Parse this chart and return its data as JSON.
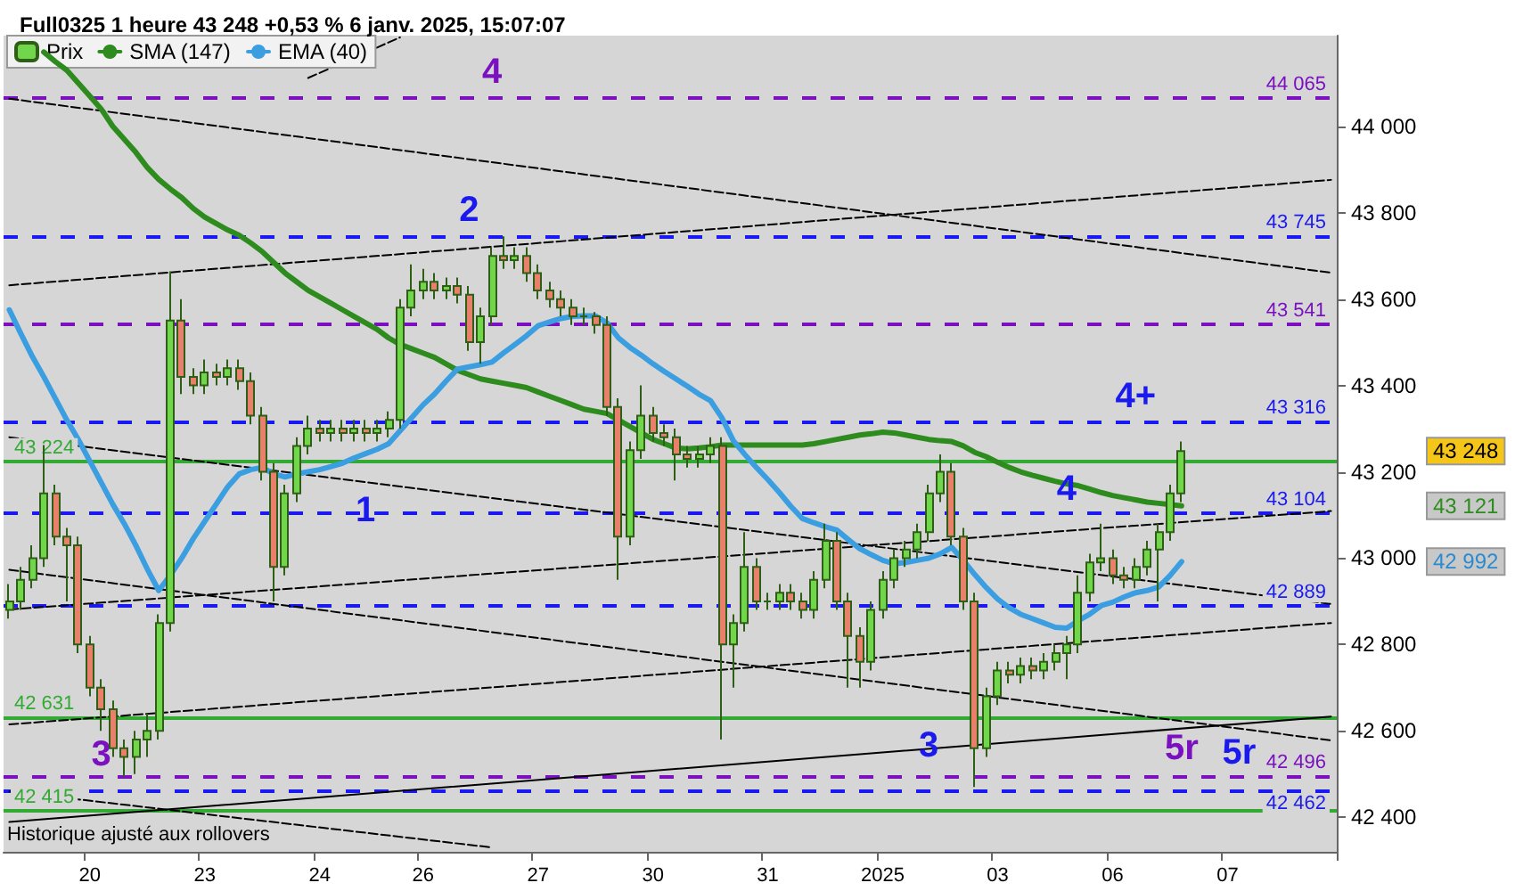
{
  "chart_data": {
    "type": "candlestick",
    "title": "Full0325 1 heure 43 248 +0,53 % 6 janv. 2025, 15:07:07",
    "categories": [
      null,
      null,
      null,
      null,
      null,
      null,
      null,
      "20",
      null,
      null,
      null,
      null,
      null,
      null,
      null,
      null,
      null,
      "23",
      null,
      null,
      null,
      null,
      null,
      null,
      null,
      null,
      null,
      "24",
      null,
      null,
      null,
      null,
      null,
      null,
      null,
      null,
      "26",
      null,
      null,
      null,
      null,
      null,
      null,
      null,
      null,
      null,
      "27",
      null,
      null,
      null,
      null,
      null,
      null,
      null,
      null,
      null,
      "30",
      null,
      null,
      null,
      null,
      null,
      null,
      null,
      null,
      null,
      "31",
      null,
      null,
      null,
      null,
      null,
      null,
      null,
      null,
      null,
      "2025",
      null,
      null,
      null,
      null,
      null,
      null,
      null,
      null,
      null,
      "03",
      null,
      null,
      null,
      null,
      null,
      null,
      null,
      null,
      null,
      "06",
      null,
      null,
      null,
      null,
      null,
      null,
      null,
      null,
      null,
      "07",
      null,
      null,
      null,
      null,
      null,
      null,
      null,
      null,
      null
    ],
    "ylim": [
      42320,
      44210
    ],
    "yticks": [
      {
        "value": 42400,
        "label": "42 400"
      },
      {
        "value": 42600,
        "label": "42 600"
      },
      {
        "value": 42800,
        "label": "42 800"
      },
      {
        "value": 43000,
        "label": "43 000"
      },
      {
        "value": 43200,
        "label": "43 200"
      },
      {
        "value": 43400,
        "label": "43 400"
      },
      {
        "value": 43600,
        "label": "43 600"
      },
      {
        "value": 43800,
        "label": "43 800"
      },
      {
        "value": 44000,
        "label": "44 000"
      }
    ],
    "grid": false,
    "legend": "top left",
    "marker": "none",
    "series": [
      {
        "type": "line",
        "color": "#000000",
        "line_style": "dashed",
        "values": [
          44064,
          null,
          null,
          null,
          null,
          null,
          null,
          null,
          null,
          null,
          null,
          null,
          null,
          null,
          null,
          null,
          null,
          null,
          null,
          null,
          null,
          null,
          null,
          null,
          null,
          null,
          null,
          null,
          null,
          null,
          null,
          null,
          null,
          null,
          null,
          null,
          null,
          null,
          null,
          null,
          null,
          null,
          null,
          null,
          null,
          null,
          null,
          null,
          null,
          null,
          null,
          null,
          null,
          null,
          null,
          null,
          null,
          null,
          null,
          null,
          null,
          null,
          null,
          null,
          null,
          null,
          null,
          null,
          null,
          null,
          null,
          null,
          null,
          null,
          null,
          null,
          null,
          null,
          null,
          null,
          null,
          null,
          null,
          null,
          null,
          null,
          null,
          null,
          null,
          null,
          null,
          null,
          null,
          null,
          null,
          null,
          null,
          null,
          null,
          null,
          null,
          null,
          null,
          null,
          null,
          null,
          null,
          null,
          null,
          null,
          null,
          null,
          null,
          null,
          null,
          43661
        ]
      },
      {
        "type": "line",
        "color": "#000000",
        "line_style": "dashed",
        "values": [
          43632,
          null,
          null,
          null,
          null,
          null,
          null,
          null,
          null,
          null,
          null,
          null,
          null,
          null,
          null,
          null,
          null,
          null,
          null,
          null,
          null,
          null,
          null,
          null,
          null,
          null,
          null,
          null,
          null,
          null,
          null,
          null,
          null,
          null,
          null,
          null,
          null,
          null,
          null,
          null,
          null,
          null,
          null,
          null,
          null,
          null,
          null,
          null,
          null,
          null,
          null,
          null,
          null,
          null,
          null,
          null,
          null,
          null,
          null,
          null,
          null,
          null,
          null,
          null,
          null,
          null,
          null,
          null,
          null,
          null,
          null,
          null,
          null,
          null,
          null,
          null,
          null,
          null,
          null,
          null,
          null,
          null,
          null,
          null,
          null,
          null,
          null,
          null,
          null,
          null,
          null,
          null,
          null,
          null,
          null,
          null,
          null,
          null,
          null,
          null,
          null,
          null,
          null,
          null,
          null,
          null,
          null,
          null,
          null,
          null,
          null,
          null,
          null,
          null,
          null,
          43876
        ]
      },
      {
        "type": "line",
        "color": "#000000",
        "line_style": "dashed",
        "values": [
          43280,
          null,
          null,
          null,
          null,
          null,
          null,
          null,
          null,
          null,
          null,
          null,
          null,
          null,
          null,
          null,
          null,
          null,
          null,
          null,
          null,
          null,
          null,
          null,
          null,
          null,
          null,
          null,
          null,
          null,
          null,
          null,
          null,
          null,
          null,
          null,
          null,
          null,
          null,
          null,
          null,
          null,
          null,
          null,
          null,
          null,
          null,
          null,
          null,
          null,
          null,
          null,
          null,
          null,
          null,
          null,
          null,
          null,
          null,
          null,
          null,
          null,
          null,
          null,
          null,
          null,
          null,
          null,
          null,
          null,
          null,
          null,
          null,
          null,
          null,
          null,
          null,
          null,
          null,
          null,
          null,
          null,
          null,
          null,
          null,
          null,
          null,
          null,
          null,
          null,
          null,
          null,
          null,
          null,
          null,
          null,
          null,
          null,
          null,
          null,
          null,
          null,
          null,
          null,
          null,
          null,
          null,
          null,
          null,
          null,
          null,
          null,
          null,
          null,
          null,
          42894
        ]
      },
      {
        "type": "line",
        "color": "#000000",
        "line_style": "dashed",
        "values": [
          42881,
          null,
          null,
          null,
          null,
          null,
          null,
          null,
          null,
          null,
          null,
          null,
          null,
          null,
          null,
          null,
          null,
          null,
          null,
          null,
          null,
          null,
          null,
          null,
          null,
          null,
          null,
          null,
          null,
          null,
          null,
          null,
          null,
          null,
          null,
          null,
          null,
          null,
          null,
          null,
          null,
          null,
          null,
          null,
          null,
          null,
          null,
          null,
          null,
          null,
          null,
          null,
          null,
          null,
          null,
          null,
          null,
          null,
          null,
          null,
          null,
          null,
          null,
          null,
          null,
          null,
          null,
          null,
          null,
          null,
          null,
          null,
          null,
          null,
          null,
          null,
          null,
          null,
          null,
          null,
          null,
          null,
          null,
          null,
          null,
          null,
          null,
          null,
          null,
          null,
          null,
          null,
          null,
          null,
          null,
          null,
          null,
          null,
          null,
          null,
          null,
          null,
          null,
          null,
          null,
          null,
          null,
          null,
          null,
          null,
          null,
          null,
          null,
          null,
          null,
          43109
        ]
      },
      {
        "type": "line",
        "color": "#000000",
        "line_style": "dashed",
        "values": [
          42973,
          null,
          null,
          null,
          null,
          null,
          null,
          null,
          null,
          null,
          null,
          null,
          null,
          null,
          null,
          null,
          null,
          null,
          null,
          null,
          null,
          null,
          null,
          null,
          null,
          null,
          null,
          null,
          null,
          null,
          null,
          null,
          null,
          null,
          null,
          null,
          null,
          null,
          null,
          null,
          null,
          null,
          null,
          null,
          null,
          null,
          null,
          null,
          null,
          null,
          null,
          null,
          null,
          null,
          null,
          null,
          null,
          null,
          null,
          null,
          null,
          null,
          null,
          null,
          null,
          null,
          null,
          null,
          null,
          null,
          null,
          null,
          null,
          null,
          null,
          null,
          null,
          null,
          null,
          null,
          null,
          null,
          null,
          null,
          null,
          null,
          null,
          null,
          null,
          null,
          null,
          null,
          null,
          null,
          null,
          null,
          null,
          null,
          null,
          null,
          null,
          null,
          null,
          null,
          null,
          null,
          null,
          null,
          null,
          null,
          null,
          null,
          null,
          null,
          null,
          42578
        ]
      },
      {
        "type": "line",
        "color": "#000000",
        "line_style": "dashed",
        "values": [
          42615,
          null,
          null,
          null,
          null,
          null,
          null,
          null,
          null,
          null,
          null,
          null,
          null,
          null,
          null,
          null,
          null,
          null,
          null,
          null,
          null,
          null,
          null,
          null,
          null,
          null,
          null,
          null,
          null,
          null,
          null,
          null,
          null,
          null,
          null,
          null,
          null,
          null,
          null,
          null,
          null,
          null,
          null,
          null,
          null,
          null,
          null,
          null,
          null,
          null,
          null,
          null,
          null,
          null,
          null,
          null,
          null,
          null,
          null,
          null,
          null,
          null,
          null,
          null,
          null,
          null,
          null,
          null,
          null,
          null,
          null,
          null,
          null,
          null,
          null,
          null,
          null,
          null,
          null,
          null,
          null,
          null,
          null,
          null,
          null,
          null,
          null,
          null,
          null,
          null,
          null,
          null,
          null,
          null,
          null,
          null,
          null,
          null,
          null,
          null,
          null,
          null,
          null,
          null,
          null,
          null,
          null,
          null,
          null,
          null,
          null,
          null,
          null,
          null,
          null,
          42850
        ]
      },
      {
        "type": "line",
        "color": "#000000",
        "line_style": "dashed",
        "values": [
          42460,
          null,
          null,
          null,
          null,
          null,
          null,
          null,
          null,
          null,
          null,
          null,
          null,
          null,
          null,
          null,
          null,
          null,
          null,
          null,
          null,
          null,
          null,
          null,
          null,
          null,
          null,
          null,
          null,
          null,
          null,
          null,
          null,
          null,
          null,
          null,
          null,
          null,
          null,
          null,
          null,
          null,
          42330,
          null,
          null,
          null,
          null,
          null,
          null,
          null,
          null,
          null,
          null,
          null,
          null,
          null,
          null,
          null,
          null,
          null,
          null,
          null,
          null,
          null,
          null,
          null,
          null,
          null,
          null,
          null,
          null,
          null,
          null,
          null,
          null,
          null,
          null,
          null,
          null,
          null,
          null,
          null,
          null,
          null,
          null,
          null,
          null,
          null,
          null,
          null,
          null,
          null,
          null,
          null,
          null,
          null,
          null,
          null,
          null,
          null,
          null,
          null,
          null,
          null,
          null,
          null,
          null,
          null,
          null,
          null,
          null,
          null,
          null,
          null,
          null,
          null
        ]
      },
      {
        "type": "line",
        "color": "#000000",
        "line_style": "dashed",
        "values": [
          null,
          null,
          null,
          null,
          null,
          null,
          null,
          null,
          null,
          null,
          null,
          null,
          null,
          null,
          null,
          null,
          null,
          null,
          null,
          null,
          null,
          null,
          null,
          null,
          null,
          null,
          44112,
          null,
          null,
          null,
          null,
          null,
          null,
          null,
          44206,
          null,
          null,
          null,
          null,
          null,
          null,
          null,
          null,
          null,
          null,
          null,
          null,
          null,
          null,
          null,
          null,
          null,
          null,
          null,
          null,
          null,
          null,
          null,
          null,
          null,
          null,
          null,
          null,
          null,
          null,
          null,
          null,
          null,
          null,
          null,
          null,
          null,
          null,
          null,
          null,
          null,
          null,
          null,
          null,
          null,
          null,
          null,
          null,
          null,
          null,
          null,
          null,
          null,
          null,
          null,
          null,
          null,
          null,
          null,
          null,
          null,
          null,
          null,
          null,
          null,
          null,
          null,
          null,
          null,
          null,
          null,
          null,
          null,
          null,
          null,
          null,
          null,
          null,
          null,
          null,
          null
        ]
      },
      {
        "type": "line",
        "color": "#000000",
        "line_style": "solid",
        "values": [
          42389,
          null,
          null,
          null,
          null,
          null,
          null,
          null,
          null,
          null,
          null,
          null,
          null,
          null,
          null,
          null,
          null,
          null,
          null,
          null,
          null,
          null,
          null,
          null,
          null,
          null,
          null,
          null,
          null,
          null,
          null,
          null,
          null,
          null,
          null,
          null,
          null,
          null,
          null,
          null,
          null,
          null,
          null,
          null,
          null,
          null,
          null,
          null,
          null,
          null,
          null,
          null,
          null,
          null,
          null,
          null,
          null,
          null,
          null,
          null,
          null,
          null,
          null,
          null,
          null,
          null,
          null,
          null,
          null,
          null,
          null,
          null,
          null,
          null,
          null,
          null,
          null,
          null,
          null,
          null,
          null,
          null,
          null,
          null,
          null,
          null,
          null,
          null,
          null,
          null,
          null,
          null,
          null,
          null,
          null,
          null,
          null,
          null,
          null,
          null,
          null,
          null,
          null,
          null,
          null,
          null,
          null,
          null,
          null,
          null,
          null,
          null,
          null,
          null,
          null,
          42633
        ]
      },
      {
        "name": "Prix",
        "ohlc": [
          [
            42880,
            42940,
            42860,
            42900
          ],
          [
            42900,
            42980,
            42880,
            42950
          ],
          [
            42950,
            43030,
            42930,
            43000
          ],
          [
            43000,
            43262,
            42980,
            43150
          ],
          [
            43150,
            43170,
            43030,
            43050
          ],
          [
            43050,
            43070,
            42900,
            43030
          ],
          [
            43030,
            43050,
            42780,
            42800
          ],
          [
            42800,
            42820,
            42680,
            42700
          ],
          [
            42700,
            42720,
            42600,
            42650
          ],
          [
            42650,
            42670,
            42540,
            42560
          ],
          [
            42560,
            42580,
            42494,
            42540
          ],
          [
            42540,
            42600,
            42500,
            42580
          ],
          [
            42580,
            42640,
            42540,
            42600
          ],
          [
            42600,
            42870,
            42580,
            42850
          ],
          [
            42850,
            43664,
            42830,
            43550
          ],
          [
            43550,
            43600,
            43380,
            43420
          ],
          [
            43420,
            43440,
            43380,
            43400
          ],
          [
            43400,
            43460,
            43380,
            43430
          ],
          [
            43430,
            43450,
            43400,
            43420
          ],
          [
            43420,
            43460,
            43400,
            43440
          ],
          [
            43440,
            43460,
            43390,
            43410
          ],
          [
            43410,
            43430,
            43310,
            43330
          ],
          [
            43330,
            43350,
            43180,
            43200
          ],
          [
            43200,
            43220,
            42900,
            42980
          ],
          [
            42980,
            43170,
            42960,
            43150
          ],
          [
            43150,
            43280,
            43130,
            43260
          ],
          [
            43260,
            43330,
            43240,
            43300
          ],
          [
            43300,
            43320,
            43270,
            43290
          ],
          [
            43290,
            43320,
            43270,
            43300
          ],
          [
            43300,
            43320,
            43270,
            43290
          ],
          [
            43290,
            43320,
            43270,
            43300
          ],
          [
            43300,
            43320,
            43270,
            43290
          ],
          [
            43290,
            43320,
            43270,
            43300
          ],
          [
            43300,
            43340,
            43280,
            43320
          ],
          [
            43320,
            43600,
            43300,
            43580
          ],
          [
            43580,
            43680,
            43560,
            43620
          ],
          [
            43620,
            43670,
            43600,
            43640
          ],
          [
            43640,
            43660,
            43600,
            43620
          ],
          [
            43620,
            43650,
            43600,
            43630
          ],
          [
            43630,
            43650,
            43590,
            43610
          ],
          [
            43610,
            43630,
            43480,
            43500
          ],
          [
            43500,
            43580,
            43450,
            43560
          ],
          [
            43560,
            43720,
            43540,
            43700
          ],
          [
            43700,
            43745,
            43670,
            43690
          ],
          [
            43690,
            43720,
            43670,
            43700
          ],
          [
            43700,
            43720,
            43640,
            43660
          ],
          [
            43660,
            43680,
            43600,
            43620
          ],
          [
            43620,
            43640,
            43580,
            43600
          ],
          [
            43600,
            43620,
            43560,
            43580
          ],
          [
            43580,
            43600,
            43540,
            43560
          ],
          [
            43560,
            43580,
            43540,
            43560
          ],
          [
            43560,
            43570,
            43520,
            43540
          ],
          [
            43540,
            43560,
            43330,
            43350
          ],
          [
            43350,
            43370,
            42950,
            43050
          ],
          [
            43050,
            43270,
            43030,
            43250
          ],
          [
            43250,
            43400,
            43230,
            43330
          ],
          [
            43330,
            43350,
            43270,
            43290
          ],
          [
            43290,
            43310,
            43260,
            43280
          ],
          [
            43280,
            43300,
            43180,
            43240
          ],
          [
            43240,
            43260,
            43210,
            43230
          ],
          [
            43230,
            43260,
            43210,
            43240
          ],
          [
            43240,
            43280,
            43220,
            43260
          ],
          [
            43260,
            43280,
            42580,
            42800
          ],
          [
            42800,
            42870,
            42700,
            42850
          ],
          [
            42850,
            43060,
            42830,
            42980
          ],
          [
            42980,
            43000,
            42880,
            42900
          ],
          [
            42900,
            42920,
            42880,
            42900
          ],
          [
            42900,
            42940,
            42880,
            42920
          ],
          [
            42920,
            42940,
            42880,
            42900
          ],
          [
            42900,
            42920,
            42860,
            42880
          ],
          [
            42880,
            42970,
            42860,
            42950
          ],
          [
            42950,
            43080,
            42930,
            43040
          ],
          [
            43040,
            43060,
            42880,
            42900
          ],
          [
            42900,
            42920,
            42700,
            42820
          ],
          [
            42820,
            42840,
            42700,
            42760
          ],
          [
            42760,
            42900,
            42740,
            42880
          ],
          [
            42880,
            42970,
            42860,
            42950
          ],
          [
            42950,
            43020,
            42930,
            43000
          ],
          [
            43000,
            43040,
            42980,
            43020
          ],
          [
            43020,
            43080,
            43000,
            43060
          ],
          [
            43060,
            43170,
            43040,
            43150
          ],
          [
            43150,
            43240,
            43130,
            43200
          ],
          [
            43200,
            43220,
            43030,
            43050
          ],
          [
            43050,
            43070,
            42880,
            42900
          ],
          [
            42900,
            42920,
            42470,
            42560
          ],
          [
            42560,
            42700,
            42540,
            42680
          ],
          [
            42680,
            42760,
            42660,
            42740
          ],
          [
            42740,
            42760,
            42710,
            42730
          ],
          [
            42730,
            42770,
            42710,
            42750
          ],
          [
            42750,
            42770,
            42720,
            42740
          ],
          [
            42740,
            42780,
            42720,
            42760
          ],
          [
            42760,
            42800,
            42740,
            42780
          ],
          [
            42780,
            42820,
            42720,
            42800
          ],
          [
            42800,
            42960,
            42780,
            42920
          ],
          [
            42920,
            43010,
            42900,
            42990
          ],
          [
            42990,
            43080,
            42970,
            43000
          ],
          [
            43000,
            43020,
            42940,
            42960
          ],
          [
            42960,
            42980,
            42930,
            42950
          ],
          [
            42950,
            43000,
            42930,
            42980
          ],
          [
            42980,
            43040,
            42960,
            43020
          ],
          [
            43020,
            43080,
            42900,
            43060
          ],
          [
            43060,
            43170,
            43040,
            43150
          ],
          [
            43150,
            43270,
            43130,
            43248
          ],
          null,
          null,
          null,
          null,
          null,
          null,
          null,
          null,
          null,
          null,
          null,
          null,
          null
        ]
      },
      {
        "name": "SMA (147)",
        "type": "line",
        "color": "#2e8b1e",
        "line_style": "solid",
        "values": [
          null,
          null,
          null,
          44172,
          44150,
          44130,
          44100,
          44070,
          44040,
          44000,
          43970,
          43940,
          43905,
          43877,
          43855,
          43835,
          43810,
          43790,
          43775,
          43760,
          43748,
          43730,
          43710,
          43685,
          43660,
          43640,
          43620,
          43605,
          43590,
          43575,
          43560,
          43545,
          43530,
          43510,
          43495,
          43485,
          43475,
          43465,
          43450,
          43435,
          43425,
          43415,
          43410,
          43405,
          43400,
          43395,
          43385,
          43375,
          43365,
          43355,
          43345,
          43340,
          43335,
          43320,
          43305,
          43290,
          43275,
          43265,
          43255,
          43253,
          43255,
          43258,
          43262,
          43262,
          43262,
          43262,
          43262,
          43262,
          43262,
          43262,
          43265,
          43270,
          43275,
          43280,
          43285,
          43288,
          43292,
          43290,
          43285,
          43280,
          43275,
          43272,
          43270,
          43260,
          43245,
          43235,
          43222,
          43210,
          43200,
          43192,
          43185,
          43178,
          43172,
          43168,
          43160,
          43152,
          43145,
          43140,
          43135,
          43130,
          43127,
          43124,
          43121,
          null,
          null,
          null,
          null,
          null,
          null,
          null,
          null,
          null,
          null,
          null,
          null,
          null
        ]
      },
      {
        "name": "EMA (40)",
        "type": "line",
        "color": "#3a9ee0",
        "line_style": "solid",
        "values": [
          43575,
          43520,
          43467,
          43420,
          43370,
          43320,
          43275,
          43225,
          43175,
          43125,
          43080,
          43030,
          42975,
          42925,
          42960,
          43000,
          43045,
          43085,
          43125,
          43165,
          43195,
          43205,
          43210,
          43195,
          43188,
          43195,
          43200,
          43205,
          43212,
          43220,
          43232,
          43242,
          43252,
          43265,
          43295,
          43325,
          43355,
          43380,
          43410,
          43438,
          43443,
          43448,
          43454,
          43475,
          43495,
          43515,
          43538,
          43547,
          43555,
          43560,
          43561,
          43561,
          43545,
          43510,
          43488,
          43470,
          43450,
          43432,
          43415,
          43398,
          43380,
          43365,
          43325,
          43272,
          43240,
          43210,
          43182,
          43152,
          43120,
          43092,
          43082,
          43073,
          43065,
          43043,
          43022,
          43008,
          42995,
          42987,
          42990,
          42995,
          43000,
          43010,
          43025,
          42995,
          42962,
          42932,
          42905,
          42885,
          42870,
          42860,
          42850,
          42840,
          42838,
          42855,
          42870,
          42890,
          42898,
          42910,
          42920,
          42925,
          42933,
          42960,
          42992,
          null,
          null,
          null,
          null,
          null,
          null,
          null,
          null,
          null,
          null,
          null,
          null,
          null
        ]
      }
    ],
    "ref_lines": [
      {
        "axis": "y",
        "value": 44065,
        "label": "44 065",
        "color": "#7a10c0",
        "line_style": "dashed"
      },
      {
        "axis": "y",
        "value": 43745,
        "label": "43 745",
        "color": "#1a1aee",
        "line_style": "dashed"
      },
      {
        "axis": "y",
        "value": 43541,
        "label": "43 541",
        "color": "#7a10c0",
        "line_style": "dashed"
      },
      {
        "axis": "y",
        "value": 43316,
        "label": "43 316",
        "color": "#1a1aee",
        "line_style": "dashed"
      },
      {
        "axis": "y",
        "value": 43224,
        "label": "43 224",
        "color": "#33aa33",
        "line_style": "solid"
      },
      {
        "axis": "y",
        "value": 43104,
        "label": "43 104",
        "color": "#1a1aee",
        "line_style": "dashed"
      },
      {
        "axis": "y",
        "value": 42889,
        "label": "42 889",
        "color": "#1a1aee",
        "line_style": "dashed"
      },
      {
        "axis": "y",
        "value": 42631,
        "label": "42 631",
        "color": "#33aa33",
        "line_style": "solid"
      },
      {
        "axis": "y",
        "value": 42496,
        "label": "42 496",
        "color": "#7a10c0",
        "line_style": "dashed"
      },
      {
        "axis": "y",
        "value": 42462,
        "label": "42 462",
        "color": "#1a1aee",
        "line_style": "dashed"
      },
      {
        "axis": "y",
        "value": 42415,
        "label": "42 415",
        "color": "#33aa33",
        "line_style": "solid"
      }
    ],
    "annotations": [
      "4",
      "2",
      "1",
      "3",
      "3",
      "4+",
      "4",
      "5r",
      "5r",
      "43 248",
      "43 121",
      "42 992",
      "Historique ajusté aux rollovers"
    ]
  }
}
